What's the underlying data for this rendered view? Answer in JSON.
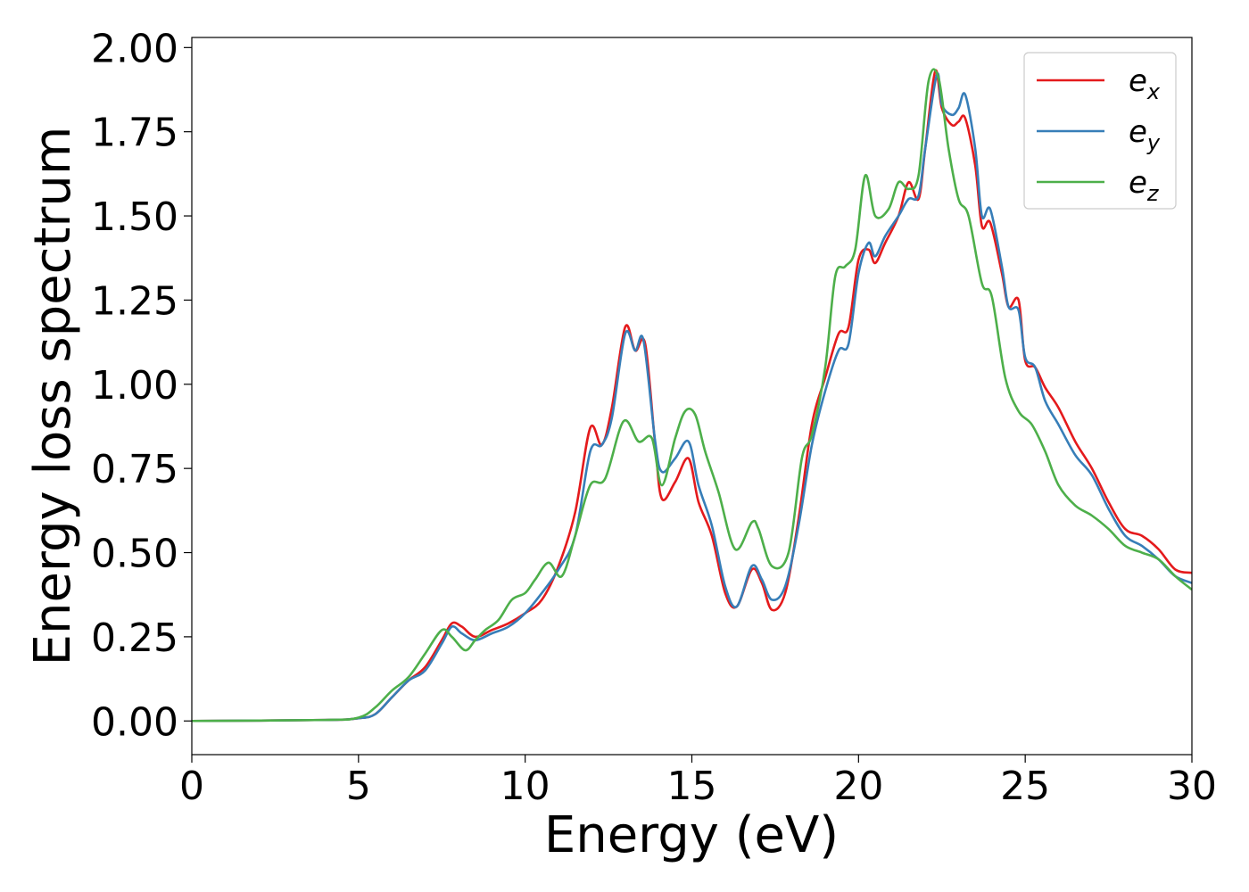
{
  "chart_data": {
    "type": "line",
    "title": "",
    "xlabel": "Energy (eV)",
    "ylabel": "Energy loss spectrum",
    "xlim": [
      0,
      30
    ],
    "ylim": [
      -0.1,
      2.03
    ],
    "xticks": [
      0,
      5,
      10,
      15,
      20,
      25,
      30
    ],
    "xtick_labels": [
      "0",
      "5",
      "10",
      "15",
      "20",
      "25",
      "30"
    ],
    "yticks": [
      0,
      0.25,
      0.5,
      0.75,
      1.0,
      1.25,
      1.5,
      1.75,
      2.0
    ],
    "ytick_labels": [
      "0.00",
      "0.25",
      "0.50",
      "0.75",
      "1.00",
      "1.25",
      "1.50",
      "1.75",
      "2.00"
    ],
    "grid": false,
    "legend_position": "top-right",
    "series": [
      {
        "name": "e_x",
        "label_base": "e",
        "label_sub": "x",
        "color": "#e41a1c",
        "x": [
          0,
          4,
          5,
          5.5,
          6,
          6.5,
          7,
          7.5,
          7.8,
          8.1,
          8.5,
          9,
          9.5,
          10,
          10.5,
          11,
          11.5,
          11.95,
          12.3,
          12.6,
          13.0,
          13.3,
          13.6,
          13.9,
          14.1,
          14.5,
          14.9,
          15.2,
          15.6,
          16.0,
          16.35,
          16.8,
          17.1,
          17.4,
          17.8,
          18.2,
          18.6,
          19.0,
          19.4,
          19.7,
          20.0,
          20.3,
          20.5,
          20.8,
          21.2,
          21.5,
          21.8,
          22.0,
          22.3,
          22.5,
          22.8,
          23.0,
          23.2,
          23.5,
          23.7,
          23.95,
          24.3,
          24.5,
          24.8,
          25.0,
          25.3,
          25.6,
          26.0,
          26.5,
          27.0,
          27.5,
          28.0,
          28.5,
          29.0,
          29.5,
          30
        ],
        "y": [
          0,
          0.003,
          0.008,
          0.02,
          0.07,
          0.12,
          0.16,
          0.24,
          0.29,
          0.28,
          0.25,
          0.27,
          0.29,
          0.32,
          0.36,
          0.46,
          0.62,
          0.87,
          0.82,
          0.93,
          1.17,
          1.1,
          1.12,
          0.82,
          0.66,
          0.71,
          0.78,
          0.65,
          0.55,
          0.38,
          0.34,
          0.45,
          0.41,
          0.33,
          0.38,
          0.6,
          0.88,
          1.02,
          1.15,
          1.17,
          1.37,
          1.4,
          1.36,
          1.42,
          1.5,
          1.6,
          1.55,
          1.7,
          1.93,
          1.82,
          1.77,
          1.78,
          1.79,
          1.65,
          1.47,
          1.48,
          1.33,
          1.23,
          1.25,
          1.07,
          1.05,
          0.99,
          0.93,
          0.83,
          0.75,
          0.65,
          0.57,
          0.55,
          0.51,
          0.45,
          0.44
        ]
      },
      {
        "name": "e_y",
        "label_base": "e",
        "label_sub": "y",
        "color": "#377eb8",
        "x": [
          0,
          4,
          5,
          5.5,
          6,
          6.5,
          7,
          7.5,
          7.8,
          8.1,
          8.5,
          9,
          9.5,
          10,
          10.5,
          11,
          11.5,
          11.95,
          12.3,
          12.6,
          13.0,
          13.3,
          13.55,
          13.9,
          14.1,
          14.5,
          14.9,
          15.2,
          15.6,
          16.0,
          16.35,
          16.8,
          17.1,
          17.4,
          17.8,
          18.2,
          18.6,
          19.0,
          19.4,
          19.7,
          20.0,
          20.3,
          20.5,
          20.8,
          21.2,
          21.5,
          21.8,
          22.0,
          22.35,
          22.5,
          22.8,
          23.0,
          23.2,
          23.5,
          23.7,
          23.95,
          24.3,
          24.5,
          24.8,
          25.0,
          25.3,
          25.6,
          26.0,
          26.5,
          27.0,
          27.5,
          28.0,
          28.5,
          29.0,
          29.5,
          30
        ],
        "y": [
          0,
          0.003,
          0.008,
          0.02,
          0.07,
          0.12,
          0.15,
          0.23,
          0.28,
          0.26,
          0.24,
          0.26,
          0.28,
          0.32,
          0.38,
          0.45,
          0.55,
          0.8,
          0.82,
          0.9,
          1.15,
          1.1,
          1.13,
          0.83,
          0.74,
          0.78,
          0.83,
          0.7,
          0.58,
          0.4,
          0.34,
          0.46,
          0.42,
          0.36,
          0.4,
          0.58,
          0.82,
          0.98,
          1.1,
          1.12,
          1.33,
          1.42,
          1.38,
          1.44,
          1.5,
          1.55,
          1.56,
          1.7,
          1.92,
          1.83,
          1.8,
          1.82,
          1.86,
          1.7,
          1.5,
          1.52,
          1.35,
          1.23,
          1.22,
          1.08,
          1.05,
          0.95,
          0.88,
          0.79,
          0.73,
          0.63,
          0.55,
          0.52,
          0.48,
          0.43,
          0.41
        ]
      },
      {
        "name": "e_z",
        "label_base": "e",
        "label_sub": "z",
        "color": "#4daf4a",
        "x": [
          0,
          4,
          5,
          5.5,
          6,
          6.5,
          7,
          7.5,
          7.8,
          8.2,
          8.5,
          8.8,
          9.2,
          9.6,
          10.0,
          10.3,
          10.7,
          11.1,
          11.5,
          11.95,
          12.4,
          12.95,
          13.4,
          13.8,
          14.1,
          14.5,
          14.8,
          15.1,
          15.4,
          15.8,
          16.3,
          16.8,
          17.0,
          17.4,
          17.9,
          18.3,
          18.6,
          19.0,
          19.3,
          19.6,
          19.9,
          20.2,
          20.5,
          20.9,
          21.2,
          21.5,
          21.8,
          22.1,
          22.4,
          22.7,
          23.0,
          23.3,
          23.7,
          24.0,
          24.4,
          24.8,
          25.2,
          25.6,
          26.0,
          26.5,
          27.0,
          27.5,
          28.0,
          28.5,
          29.0,
          29.5,
          30
        ],
        "y": [
          0,
          0.003,
          0.01,
          0.04,
          0.09,
          0.13,
          0.2,
          0.27,
          0.25,
          0.21,
          0.24,
          0.27,
          0.3,
          0.36,
          0.38,
          0.42,
          0.47,
          0.43,
          0.55,
          0.7,
          0.72,
          0.89,
          0.83,
          0.84,
          0.7,
          0.84,
          0.92,
          0.91,
          0.8,
          0.68,
          0.51,
          0.59,
          0.57,
          0.46,
          0.5,
          0.78,
          0.85,
          1.05,
          1.32,
          1.35,
          1.4,
          1.62,
          1.5,
          1.52,
          1.6,
          1.58,
          1.62,
          1.9,
          1.91,
          1.7,
          1.55,
          1.5,
          1.3,
          1.26,
          1.02,
          0.92,
          0.88,
          0.8,
          0.7,
          0.64,
          0.61,
          0.57,
          0.52,
          0.5,
          0.48,
          0.43,
          0.39
        ]
      }
    ]
  }
}
